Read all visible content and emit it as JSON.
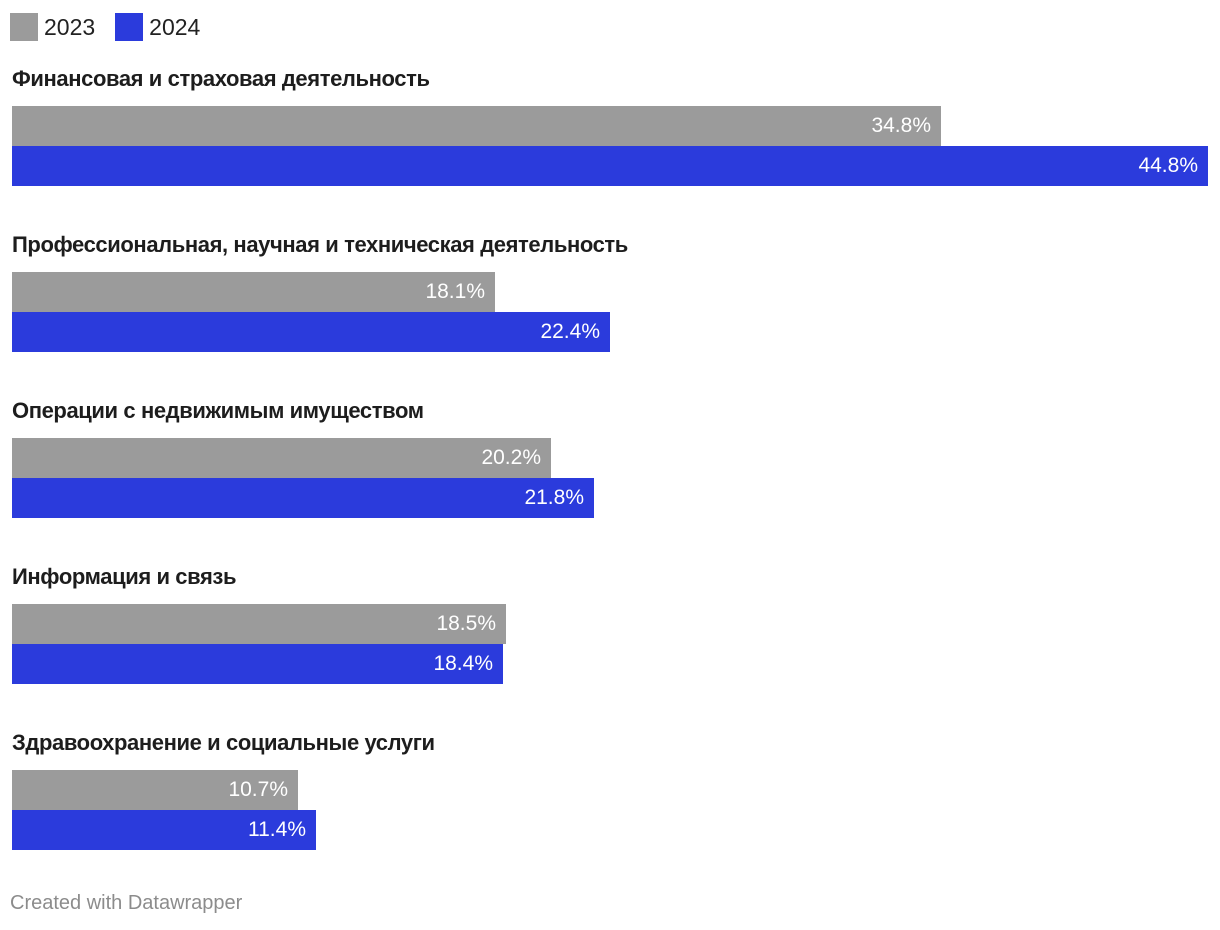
{
  "colors": {
    "series_2023": "#9b9b9b",
    "series_2024": "#2b3bdc"
  },
  "footer": "Created with Datawrapper",
  "chart_data": {
    "type": "bar",
    "orientation": "horizontal",
    "legend_position": "top-left",
    "grid": false,
    "xlim": [
      0,
      44.8
    ],
    "categories": [
      "Финансовая и страховая деятельность",
      "Профессиональная, научная и техническая деятельность",
      "Операции с недвижимым имуществом",
      "Информация и связь",
      "Здравоохранение и социальные услуги"
    ],
    "series": [
      {
        "name": "2023",
        "values": [
          34.8,
          18.1,
          20.2,
          18.5,
          10.7
        ],
        "labels": [
          "34.8%",
          "18.1%",
          "20.2%",
          "18.5%",
          "10.7%"
        ]
      },
      {
        "name": "2024",
        "values": [
          44.8,
          22.4,
          21.8,
          18.4,
          11.4
        ],
        "labels": [
          "44.8%",
          "22.4%",
          "21.8%",
          "18.4%",
          "11.4%"
        ]
      }
    ]
  }
}
